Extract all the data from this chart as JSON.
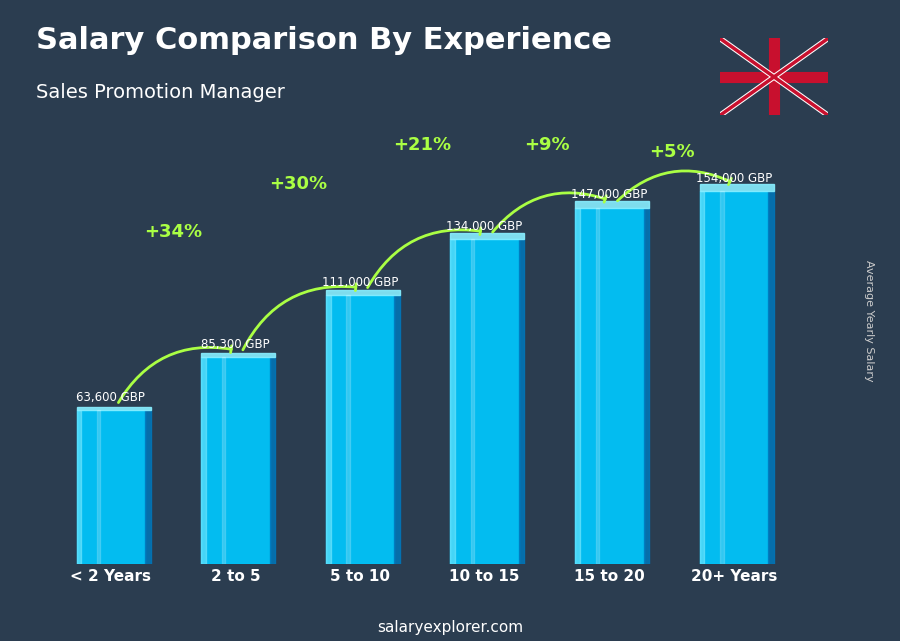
{
  "title": "Salary Comparison By Experience",
  "subtitle": "Sales Promotion Manager",
  "categories": [
    "< 2 Years",
    "2 to 5",
    "5 to 10",
    "10 to 15",
    "15 to 20",
    "20+ Years"
  ],
  "values": [
    63600,
    85300,
    111000,
    134000,
    147000,
    154000
  ],
  "labels": [
    "63,600 GBP",
    "85,300 GBP",
    "111,000 GBP",
    "134,000 GBP",
    "147,000 GBP",
    "154,000 GBP"
  ],
  "increases": [
    null,
    "+34%",
    "+30%",
    "+21%",
    "+9%",
    "+5%"
  ],
  "bar_color_top": "#00cfff",
  "bar_color_mid": "#00aaee",
  "bar_color_dark": "#007bbf",
  "bg_color": "#1a2a3a",
  "title_color": "#ffffff",
  "subtitle_color": "#ffffff",
  "label_color": "#ffffff",
  "increase_color": "#aaff44",
  "footer_text": "salaryexplorer.com",
  "right_label": "Average Yearly Salary",
  "ylim": [
    0,
    185000
  ]
}
